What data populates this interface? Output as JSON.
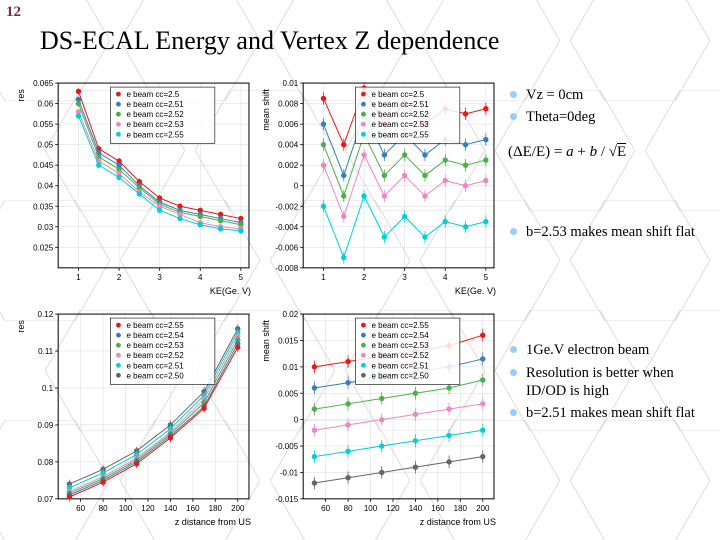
{
  "slide_number": "12",
  "title": "DS-ECAL Energy and Vertex Z dependence",
  "colors": {
    "bullet": "#99ccff",
    "axis": "#000000",
    "grid": "#d9d9d9",
    "hex_stroke": "#dcdcdc",
    "series": {
      "cc2_50": "#e41a1c",
      "cc2_51": "#377eb8",
      "cc2_52": "#4daf4a",
      "cc2_53": "#e78ac3",
      "cc2_54": "#ff7f00",
      "cc2_55": "#00ced1"
    }
  },
  "notes": {
    "sec1": [
      "Vz = 0cm",
      "Theta=0deg"
    ],
    "formula": "(ΔE/E) = a + b / √E",
    "sec2": [
      "b=2.53 makes mean shift flat"
    ],
    "sec3": [
      "1Ge.V electron beam",
      "Resolution is better when ID/OD is high",
      "b=2.51 makes mean shift flat"
    ]
  },
  "legend_top": [
    {
      "label": "e beam cc=2.5",
      "color": "#e41a1c",
      "marker": "circle"
    },
    {
      "label": "e beam cc=2.51",
      "color": "#377eb8",
      "marker": "square"
    },
    {
      "label": "e beam cc=2.52",
      "color": "#4daf4a",
      "marker": "triangle"
    },
    {
      "label": "e beam cc=2.53",
      "color": "#e78ac3",
      "marker": "tridown"
    },
    {
      "label": "e beam cc=2.55",
      "color": "#00ced1",
      "marker": "opencircle"
    }
  ],
  "legend_bottom": [
    {
      "label": "e beam cc=2.55",
      "color": "#e41a1c",
      "marker": "circle"
    },
    {
      "label": "e beam cc=2.54",
      "color": "#377eb8",
      "marker": "square"
    },
    {
      "label": "e beam cc=2.53",
      "color": "#4daf4a",
      "marker": "triangle"
    },
    {
      "label": "e beam cc=2.52",
      "color": "#e78ac3",
      "marker": "tridown"
    },
    {
      "label": "e beam cc=2.51",
      "color": "#00ced1",
      "marker": "opencircle"
    },
    {
      "label": "e beam cc=2.50",
      "color": "#666666",
      "marker": "opensquare"
    }
  ],
  "charts": {
    "top_left": {
      "type": "scatter-line",
      "xlabel": "KE(Ge. V)",
      "ylabel": "res",
      "xlim": [
        0.5,
        5.2
      ],
      "xticks": [
        1,
        2,
        3,
        4,
        5
      ],
      "ylim": [
        0.02,
        0.065
      ],
      "yticks": [
        0.025,
        0.03,
        0.035,
        0.04,
        0.045,
        0.05,
        0.055,
        0.06,
        0.065
      ],
      "series": [
        {
          "key": "cc2_50",
          "x": [
            1,
            1.5,
            2,
            2.5,
            3,
            3.5,
            4,
            4.5,
            5
          ],
          "y": [
            0.063,
            0.049,
            0.046,
            0.041,
            0.037,
            0.035,
            0.034,
            0.033,
            0.032
          ],
          "err": 0.0007
        },
        {
          "key": "cc2_51",
          "x": [
            1,
            1.5,
            2,
            2.5,
            3,
            3.5,
            4,
            4.5,
            5
          ],
          "y": [
            0.061,
            0.048,
            0.045,
            0.04,
            0.036,
            0.034,
            0.033,
            0.032,
            0.031
          ],
          "err": 0.0007
        },
        {
          "key": "cc2_52",
          "x": [
            1,
            1.5,
            2,
            2.5,
            3,
            3.5,
            4,
            4.5,
            5
          ],
          "y": [
            0.06,
            0.047,
            0.044,
            0.0395,
            0.0355,
            0.0335,
            0.0325,
            0.0315,
            0.0305
          ],
          "err": 0.0007
        },
        {
          "key": "cc2_53",
          "x": [
            1,
            1.5,
            2,
            2.5,
            3,
            3.5,
            4,
            4.5,
            5
          ],
          "y": [
            0.058,
            0.046,
            0.043,
            0.0385,
            0.035,
            0.033,
            0.031,
            0.03,
            0.0295
          ],
          "err": 0.0007
        },
        {
          "key": "cc2_55",
          "x": [
            1,
            1.5,
            2,
            2.5,
            3,
            3.5,
            4,
            4.5,
            5
          ],
          "y": [
            0.057,
            0.045,
            0.042,
            0.038,
            0.034,
            0.032,
            0.0305,
            0.0295,
            0.029
          ],
          "err": 0.0007
        }
      ]
    },
    "top_right": {
      "type": "scatter-line",
      "xlabel": "KE(Ge. V)",
      "ylabel": "mean shift",
      "xlim": [
        0.5,
        5.2
      ],
      "xticks": [
        1,
        2,
        3,
        4,
        5
      ],
      "ylim": [
        -0.008,
        0.01
      ],
      "yticks": [
        -0.008,
        -0.006,
        -0.004,
        -0.002,
        0,
        0.002,
        0.004,
        0.006,
        0.008,
        0.01
      ],
      "series": [
        {
          "key": "cc2_50",
          "x": [
            1,
            1.5,
            2,
            2.5,
            3,
            3.5,
            4,
            4.5,
            5
          ],
          "y": [
            0.0085,
            0.004,
            0.0095,
            0.006,
            0.008,
            0.006,
            0.0075,
            0.007,
            0.0075
          ],
          "err": 0.0006
        },
        {
          "key": "cc2_51",
          "x": [
            1,
            1.5,
            2,
            2.5,
            3,
            3.5,
            4,
            4.5,
            5
          ],
          "y": [
            0.006,
            0.001,
            0.007,
            0.003,
            0.005,
            0.003,
            0.0045,
            0.004,
            0.0045
          ],
          "err": 0.0006
        },
        {
          "key": "cc2_52",
          "x": [
            1,
            1.5,
            2,
            2.5,
            3,
            3.5,
            4,
            4.5,
            5
          ],
          "y": [
            0.004,
            -0.001,
            0.005,
            0.001,
            0.003,
            0.001,
            0.0025,
            0.002,
            0.0025
          ],
          "err": 0.0006
        },
        {
          "key": "cc2_53",
          "x": [
            1,
            1.5,
            2,
            2.5,
            3,
            3.5,
            4,
            4.5,
            5
          ],
          "y": [
            0.002,
            -0.003,
            0.003,
            -0.001,
            0.001,
            -0.001,
            0.0005,
            0.0,
            0.0005
          ],
          "err": 0.0006
        },
        {
          "key": "cc2_55",
          "x": [
            1,
            1.5,
            2,
            2.5,
            3,
            3.5,
            4,
            4.5,
            5
          ],
          "y": [
            -0.002,
            -0.007,
            -0.001,
            -0.005,
            -0.003,
            -0.005,
            -0.0035,
            -0.004,
            -0.0035
          ],
          "err": 0.0006
        }
      ]
    },
    "bottom_left": {
      "type": "scatter-line",
      "xlabel": "z distance from US",
      "ylabel": "res",
      "xlim": [
        40,
        210
      ],
      "xticks": [
        60,
        80,
        100,
        120,
        140,
        160,
        180,
        200
      ],
      "ylim": [
        0.07,
        0.12
      ],
      "yticks": [
        0.07,
        0.08,
        0.09,
        0.1,
        0.11,
        0.12
      ],
      "series": [
        {
          "key": "cc2_50",
          "x": [
            50,
            80,
            110,
            140,
            170,
            200
          ],
          "y": [
            0.074,
            0.078,
            0.083,
            0.09,
            0.099,
            0.116
          ],
          "err": 0.0012,
          "color": "#666666"
        },
        {
          "key": "cc2_51",
          "x": [
            50,
            80,
            110,
            140,
            170,
            200
          ],
          "y": [
            0.073,
            0.077,
            0.082,
            0.089,
            0.098,
            0.115
          ],
          "err": 0.0012,
          "color": "#00ced1"
        },
        {
          "key": "cc2_52",
          "x": [
            50,
            80,
            110,
            140,
            170,
            200
          ],
          "y": [
            0.072,
            0.076,
            0.081,
            0.088,
            0.097,
            0.114
          ],
          "err": 0.0012,
          "color": "#e78ac3"
        },
        {
          "key": "cc2_53",
          "x": [
            50,
            80,
            110,
            140,
            170,
            200
          ],
          "y": [
            0.0715,
            0.0755,
            0.0805,
            0.0875,
            0.096,
            0.113
          ],
          "err": 0.0012,
          "color": "#4daf4a"
        },
        {
          "key": "cc2_54",
          "x": [
            50,
            80,
            110,
            140,
            170,
            200
          ],
          "y": [
            0.071,
            0.075,
            0.08,
            0.087,
            0.095,
            0.112
          ],
          "err": 0.0012,
          "color": "#377eb8"
        },
        {
          "key": "cc2_55",
          "x": [
            50,
            80,
            110,
            140,
            170,
            200
          ],
          "y": [
            0.0705,
            0.0745,
            0.0795,
            0.0865,
            0.0945,
            0.111
          ],
          "err": 0.0012,
          "color": "#e41a1c"
        }
      ]
    },
    "bottom_right": {
      "type": "scatter-line",
      "xlabel": "z distance from US",
      "ylabel": "mean shift",
      "xlim": [
        40,
        210
      ],
      "xticks": [
        60,
        80,
        100,
        120,
        140,
        160,
        180,
        200
      ],
      "ylim": [
        -0.015,
        0.02
      ],
      "yticks": [
        -0.015,
        -0.01,
        -0.005,
        0,
        0.005,
        0.01,
        0.015,
        0.02
      ],
      "series": [
        {
          "key": "cc2_50",
          "x": [
            50,
            80,
            110,
            140,
            170,
            200
          ],
          "y": [
            -0.012,
            -0.011,
            -0.01,
            -0.009,
            -0.008,
            -0.007
          ],
          "err": 0.0012,
          "color": "#666666"
        },
        {
          "key": "cc2_51",
          "x": [
            50,
            80,
            110,
            140,
            170,
            200
          ],
          "y": [
            -0.007,
            -0.006,
            -0.005,
            -0.004,
            -0.003,
            -0.002
          ],
          "err": 0.0012,
          "color": "#00ced1"
        },
        {
          "key": "cc2_52",
          "x": [
            50,
            80,
            110,
            140,
            170,
            200
          ],
          "y": [
            -0.002,
            -0.001,
            0.0,
            0.001,
            0.002,
            0.003
          ],
          "err": 0.0012,
          "color": "#e78ac3"
        },
        {
          "key": "cc2_53",
          "x": [
            50,
            80,
            110,
            140,
            170,
            200
          ],
          "y": [
            0.002,
            0.003,
            0.004,
            0.005,
            0.006,
            0.0075
          ],
          "err": 0.0012,
          "color": "#4daf4a"
        },
        {
          "key": "cc2_54",
          "x": [
            50,
            80,
            110,
            140,
            170,
            200
          ],
          "y": [
            0.006,
            0.007,
            0.008,
            0.009,
            0.01,
            0.0115
          ],
          "err": 0.0012,
          "color": "#377eb8"
        },
        {
          "key": "cc2_55",
          "x": [
            50,
            80,
            110,
            140,
            170,
            200
          ],
          "y": [
            0.01,
            0.011,
            0.012,
            0.013,
            0.014,
            0.016
          ],
          "err": 0.0012,
          "color": "#e41a1c"
        }
      ]
    }
  }
}
